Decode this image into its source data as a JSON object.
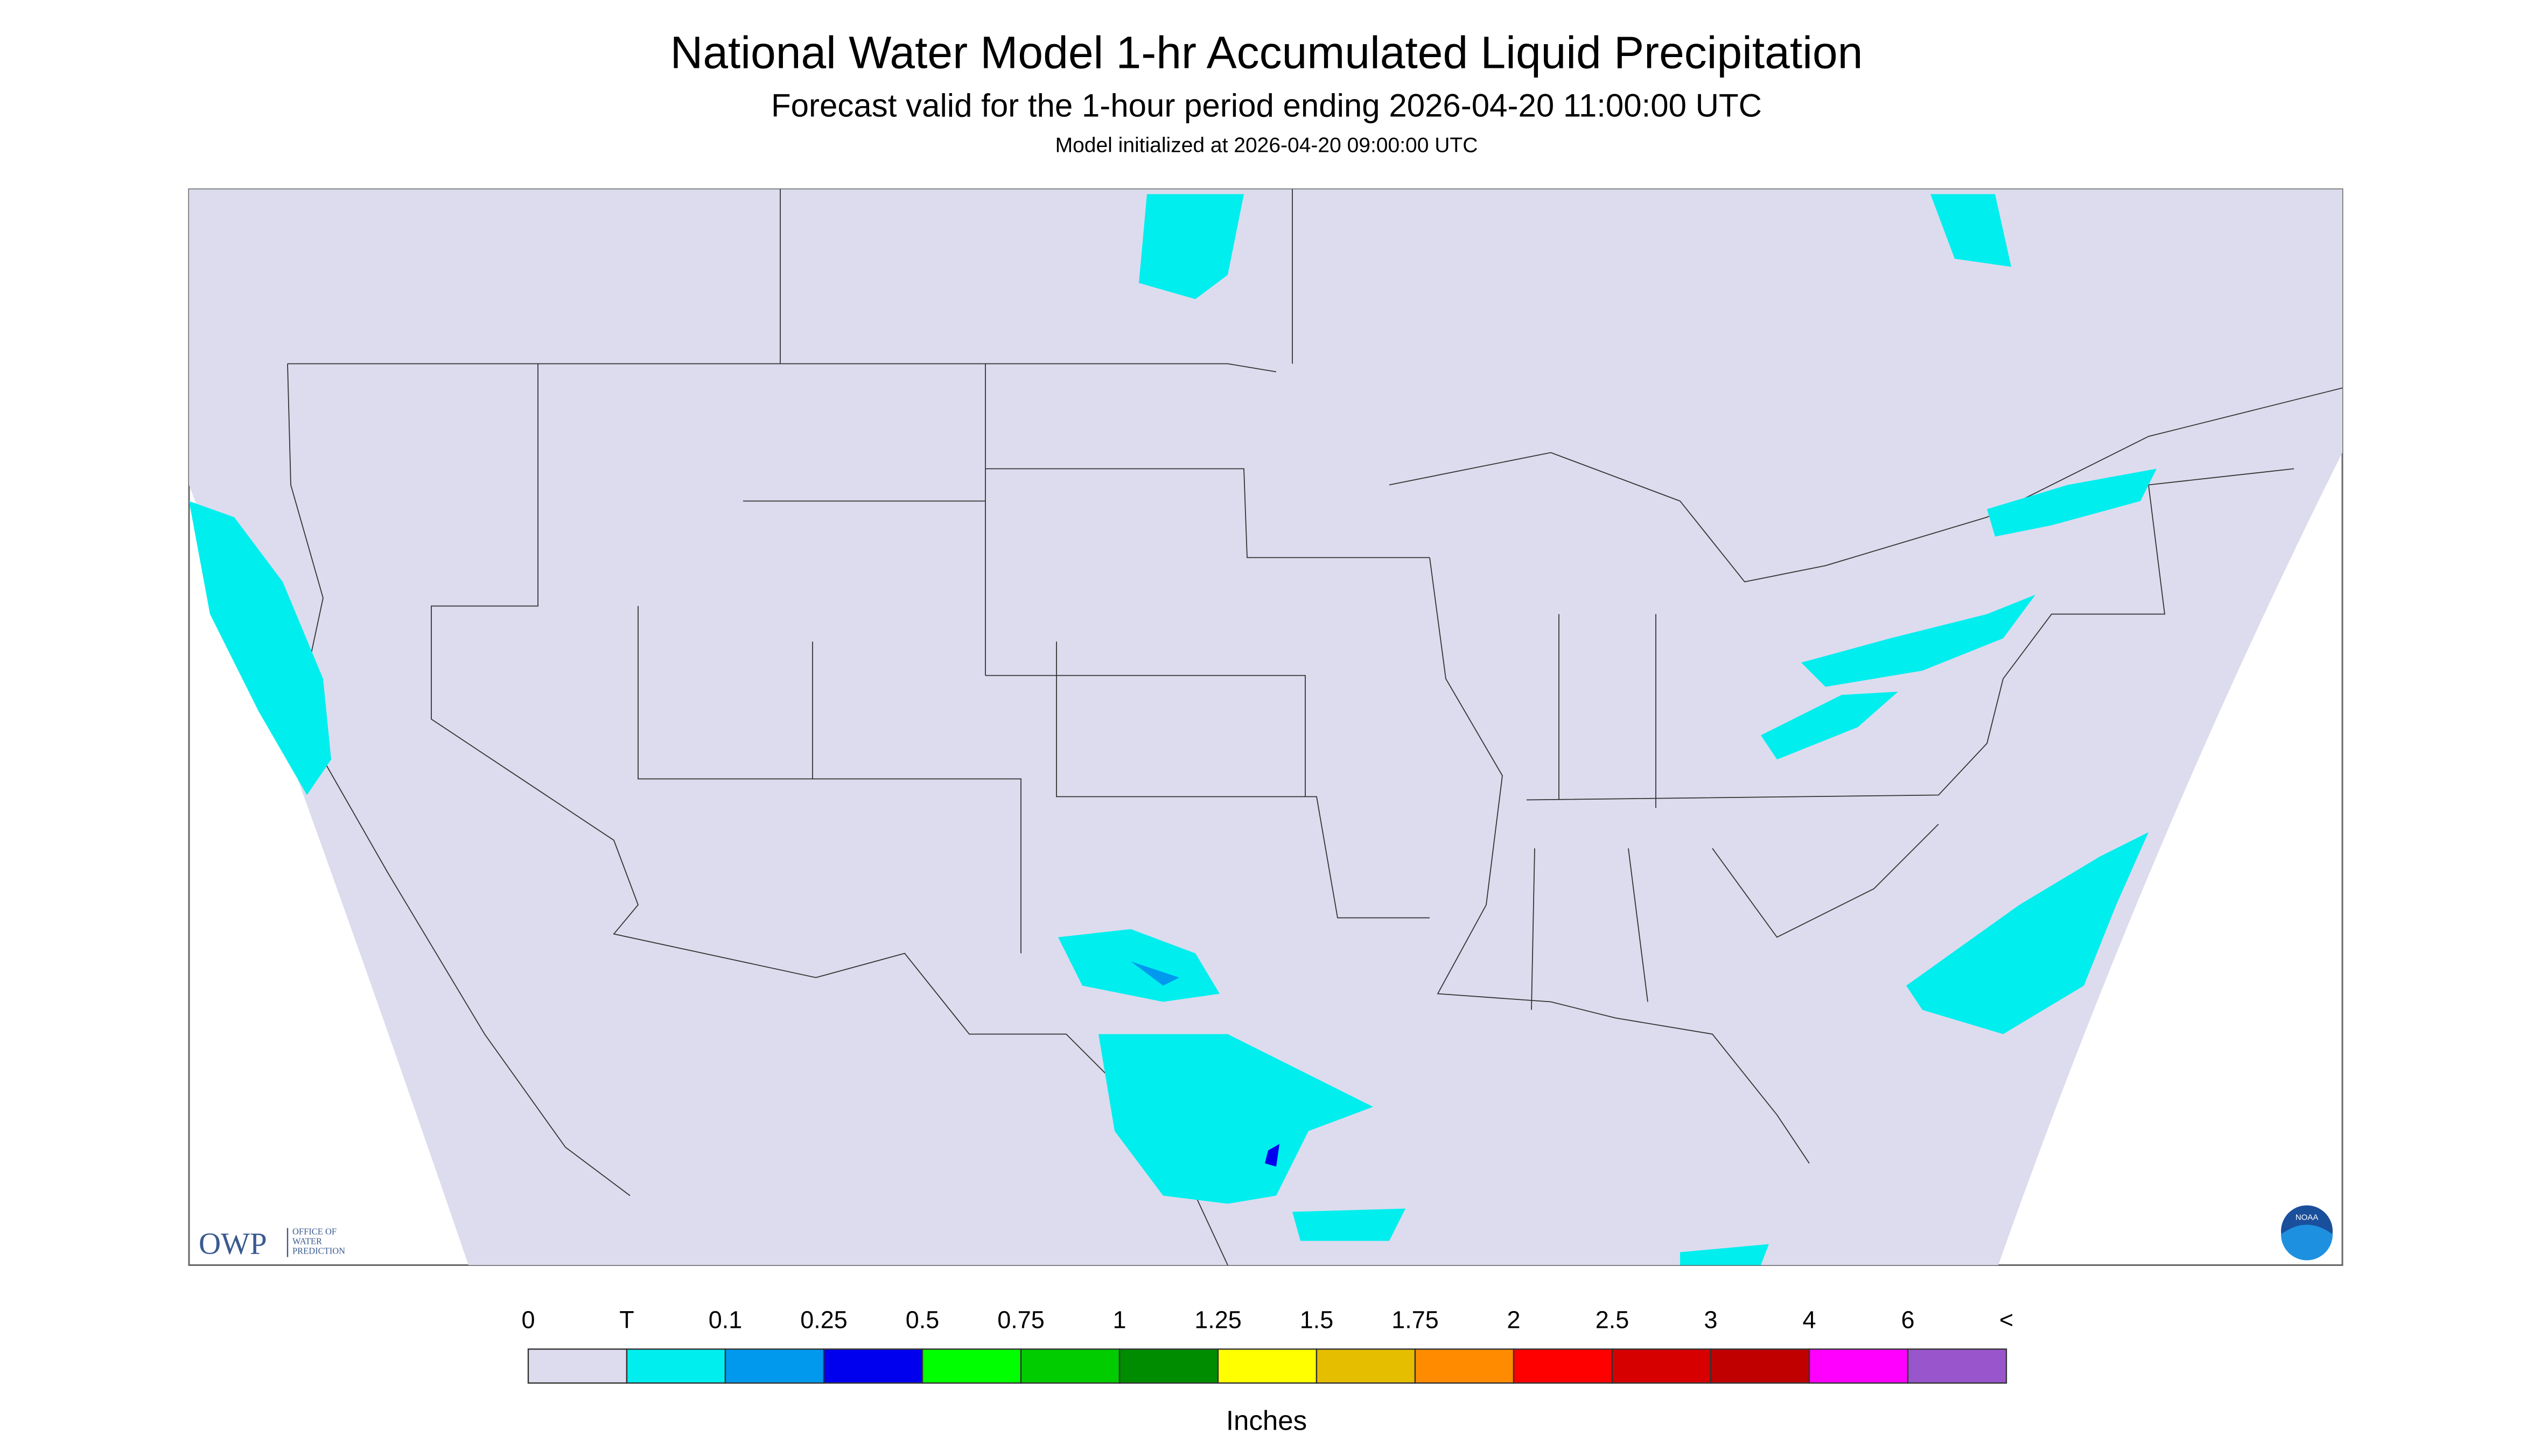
{
  "header": {
    "title": "National Water Model 1-hr Accumulated Liquid Precipitation",
    "subtitle": "Forecast valid for the 1-hour period ending 2026-04-20 11:00:00 UTC",
    "init": "Model initialized at 2026-04-20 09:00:00 UTC"
  },
  "logos": {
    "owp": "OWP",
    "owp_name": [
      "OFFICE OF",
      "WATER",
      "PREDICTION"
    ],
    "noaa": "NOAA"
  },
  "legend": {
    "labels": [
      "0",
      "T",
      "0.1",
      "0.25",
      "0.5",
      "0.75",
      "1",
      "1.25",
      "1.5",
      "1.75",
      "2",
      "2.5",
      "3",
      "4",
      "6",
      "<"
    ],
    "colors": [
      "#dcdcee",
      "#00eeee",
      "#0099ee",
      "#0000ee",
      "#00ff00",
      "#00cc00",
      "#008c00",
      "#ffff00",
      "#e6be00",
      "#ff8c00",
      "#ff0000",
      "#d70000",
      "#c00000",
      "#ff00ff",
      "#9955cc"
    ],
    "unit": "Inches"
  }
}
